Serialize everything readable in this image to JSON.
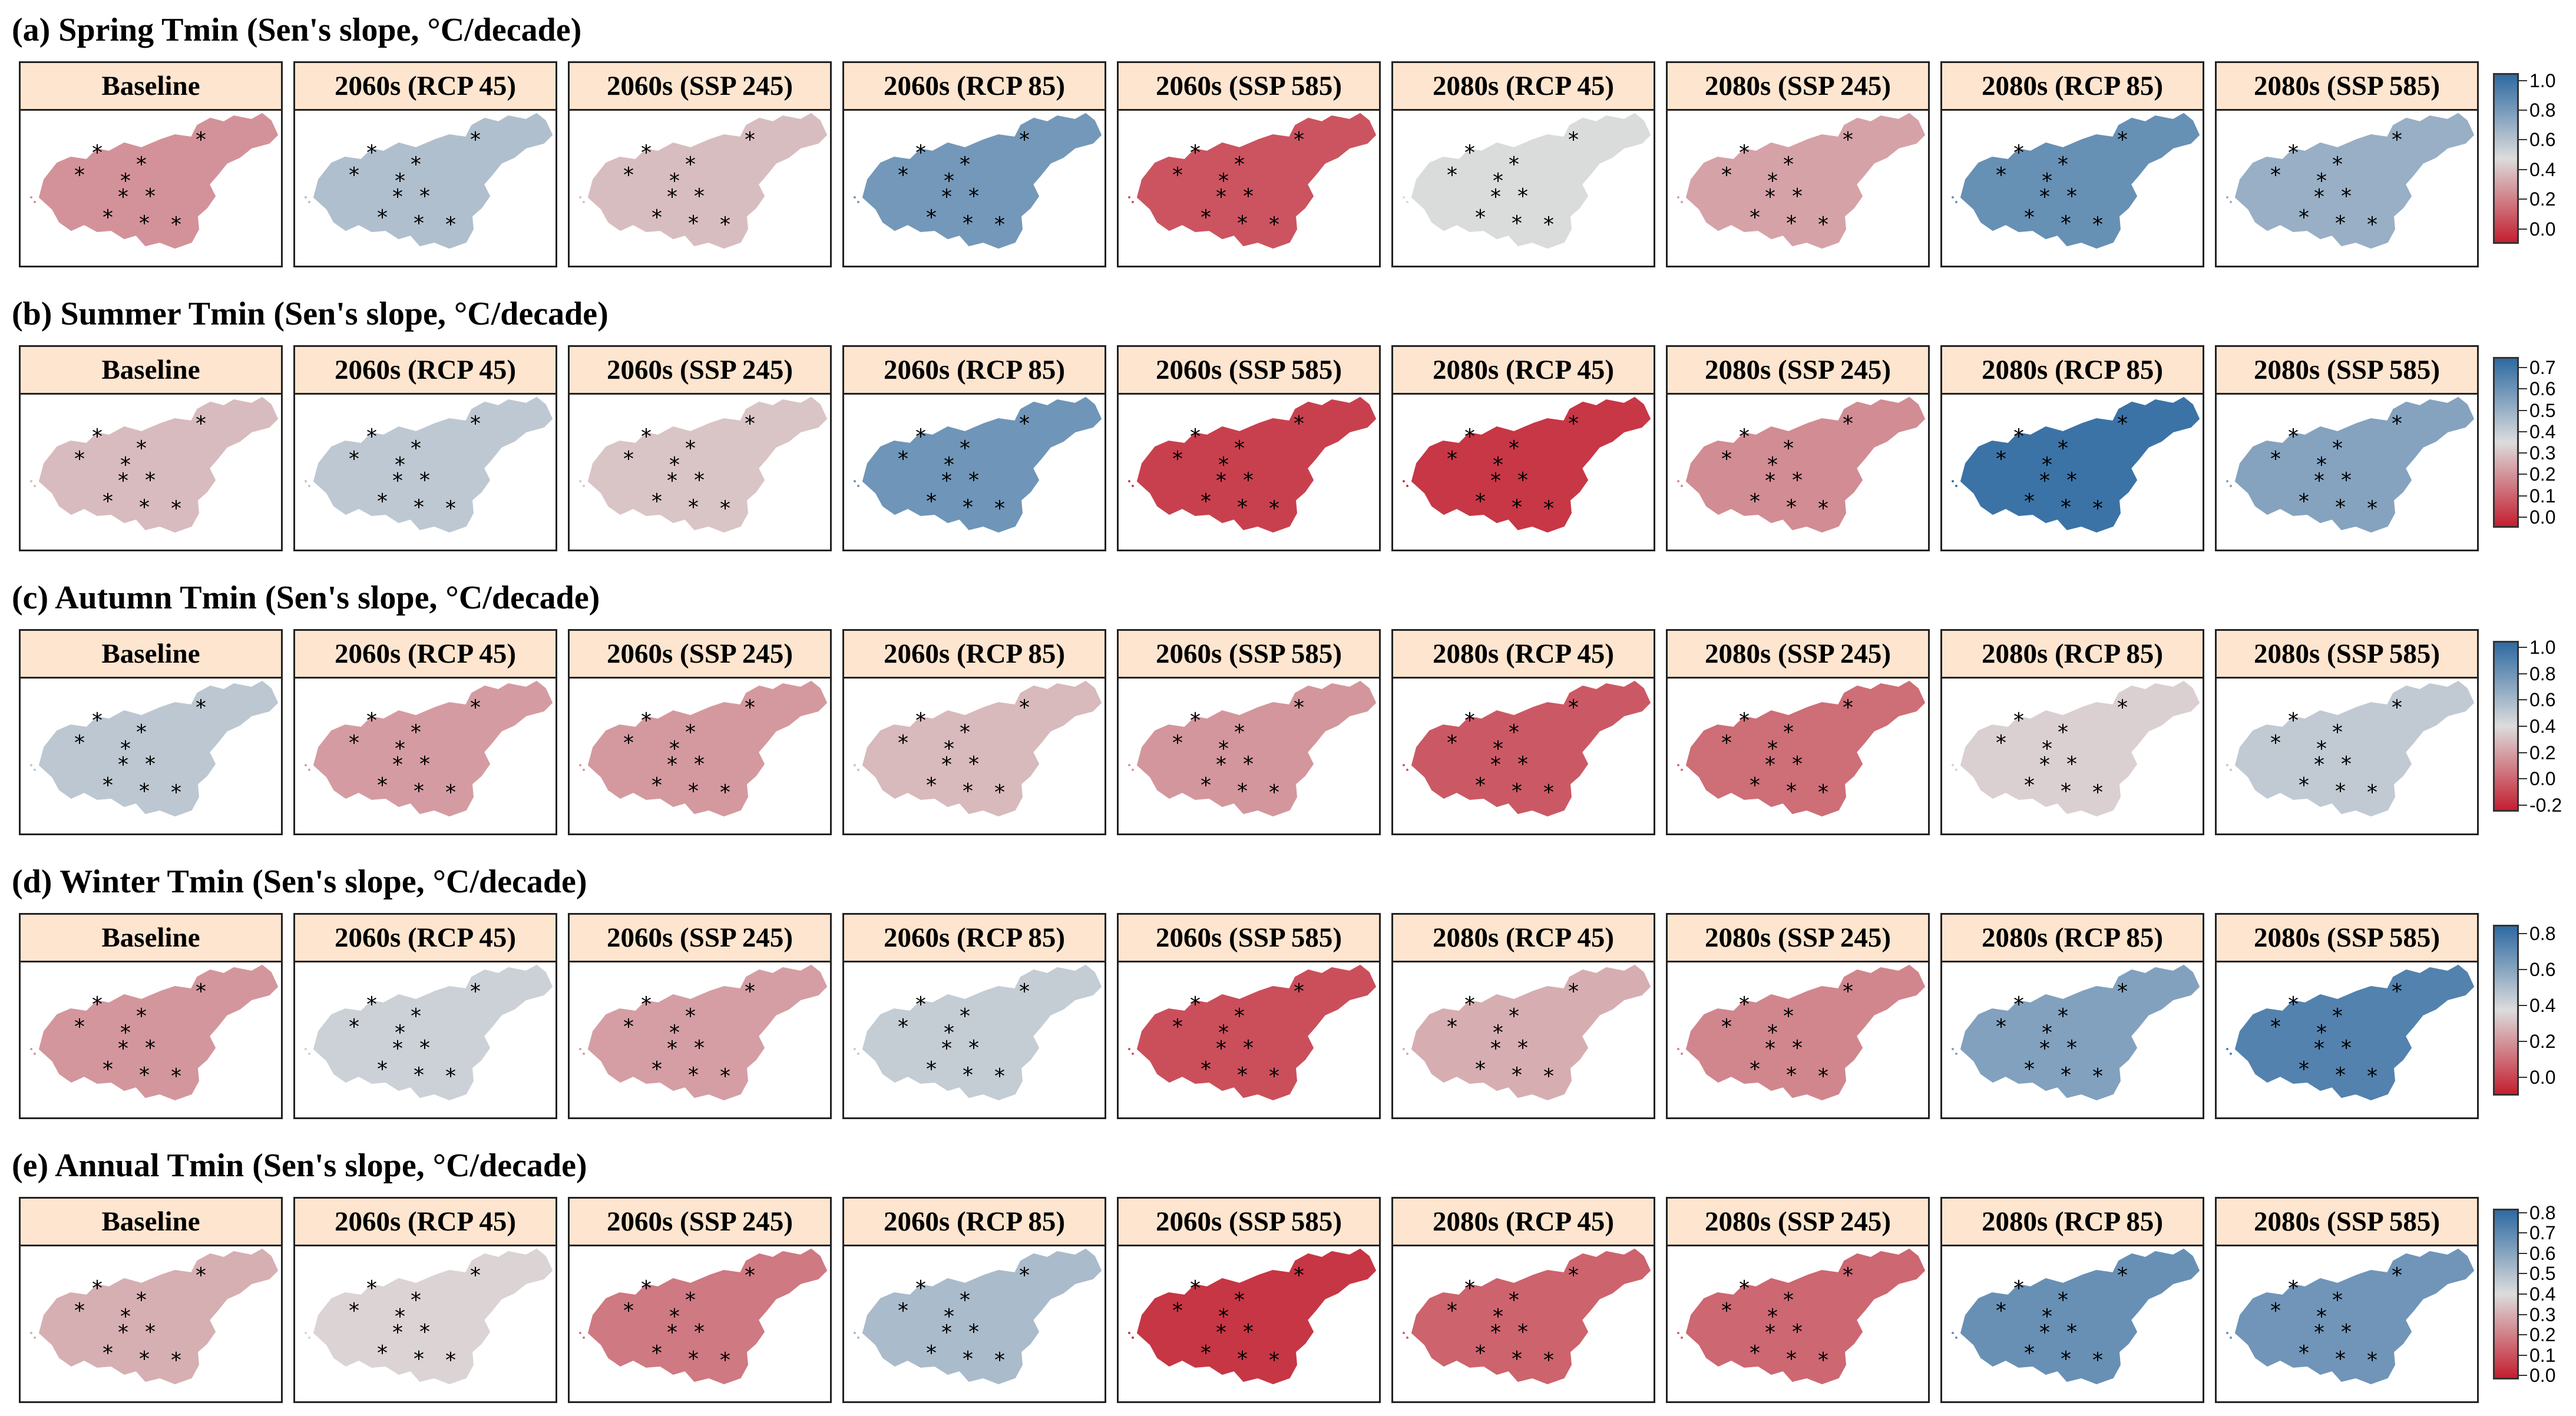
{
  "columns": [
    "Baseline",
    "2060s (RCP 45)",
    "2060s (SSP 245)",
    "2060s (RCP 85)",
    "2060s (SSP 585)",
    "2080s (RCP 45)",
    "2080s (SSP 245)",
    "2080s (RCP 85)",
    "2080s (SSP 585)"
  ],
  "legend_scale": {
    "low_color": "#c41f30",
    "mid_color": "#dcdcdc",
    "high_color": "#2e6aa2"
  },
  "rows": [
    {
      "title": "(a) Spring Tmin (Sen's slope, °C/decade)",
      "ticks": [
        "1.0",
        "0.8",
        "0.6",
        "0.4",
        "0.2",
        "0.0"
      ],
      "tick_values": [
        1.0,
        0.8,
        0.6,
        0.4,
        0.2,
        0.0
      ],
      "range": [
        -0.1,
        1.05
      ],
      "panel_values": [
        0.25,
        0.62,
        0.38,
        0.82,
        0.06,
        0.48,
        0.3,
        0.86,
        0.7
      ]
    },
    {
      "title": "(b) Summer Tmin (Sen's slope, °C/decade)",
      "ticks": [
        "0.7",
        "0.6",
        "0.5",
        "0.4",
        "0.3",
        "0.2",
        "0.1",
        "0.0"
      ],
      "tick_values": [
        0.7,
        0.6,
        0.5,
        0.4,
        0.3,
        0.2,
        0.1,
        0.0
      ],
      "range": [
        -0.05,
        0.75
      ],
      "panel_values": [
        0.28,
        0.42,
        0.3,
        0.6,
        0.02,
        0.0,
        0.18,
        0.72,
        0.55
      ]
    },
    {
      "title": "(c) Autumn Tmin (Sen's slope, °C/decade)",
      "ticks": [
        "1.0",
        "0.8",
        "0.6",
        "0.4",
        "0.2",
        "0.0",
        "-0.2"
      ],
      "tick_values": [
        1.0,
        0.8,
        0.6,
        0.4,
        0.2,
        0.0,
        -0.2
      ],
      "range": [
        -0.25,
        1.05
      ],
      "panel_values": [
        0.52,
        0.18,
        0.17,
        0.28,
        0.16,
        -0.05,
        0.02,
        0.36,
        0.5
      ]
    },
    {
      "title": "(d) Winter Tmin (Sen's slope, °C/decade)",
      "ticks": [
        "0.8",
        "0.6",
        "0.4",
        "0.2",
        "0.0"
      ],
      "tick_values": [
        0.8,
        0.6,
        0.4,
        0.2,
        0.0
      ],
      "range": [
        -0.1,
        0.85
      ],
      "panel_values": [
        0.2,
        0.42,
        0.22,
        0.44,
        0.02,
        0.26,
        0.16,
        0.62,
        0.75
      ]
    },
    {
      "title": "(e) Annual Tmin (Sen's slope, °C/decade)",
      "ticks": [
        "0.8",
        "0.7",
        "0.6",
        "0.5",
        "0.4",
        "0.3",
        "0.2",
        "0.1",
        "0.0"
      ],
      "tick_values": [
        0.8,
        0.7,
        0.6,
        0.5,
        0.4,
        0.3,
        0.2,
        0.1,
        0.0
      ],
      "range": [
        -0.02,
        0.82
      ],
      "panel_values": [
        0.3,
        0.38,
        0.18,
        0.52,
        0.03,
        0.13,
        0.14,
        0.68,
        0.66
      ]
    }
  ],
  "station_marker": "*"
}
